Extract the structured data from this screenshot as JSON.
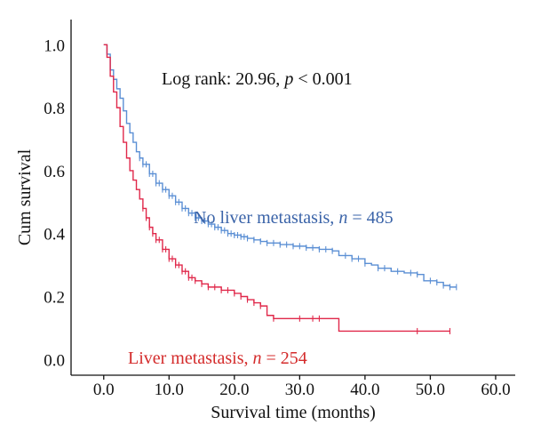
{
  "chart_data": {
    "type": "line",
    "title": "",
    "xlabel": "Survival time (months)",
    "ylabel": "Cum survival",
    "xlim": [
      -5,
      63
    ],
    "ylim": [
      -0.05,
      1.08
    ],
    "x_ticks": [
      "0.0",
      "10.0",
      "20.0",
      "30.0",
      "40.0",
      "50.0",
      "60.0"
    ],
    "x_tick_values": [
      0,
      10,
      20,
      30,
      40,
      50,
      60
    ],
    "y_ticks": [
      "0.0",
      "0.2",
      "0.4",
      "0.6",
      "0.8",
      "1.0"
    ],
    "y_tick_values": [
      0.0,
      0.2,
      0.4,
      0.6,
      0.8,
      1.0
    ],
    "grid": false,
    "annotations": {
      "logrank_prefix": "Log rank: 20.96, ",
      "logrank_p": "p",
      "logrank_suffix": " < 0.001",
      "no_liver_prefix": "No liver metastasis, ",
      "no_liver_n": "n",
      "no_liver_suffix": " = 485",
      "liver_prefix": "Liver metastasis, ",
      "liver_n": "n",
      "liver_suffix": " = 254"
    },
    "series": [
      {
        "name": "No liver metastasis, n = 485",
        "color": "#5b8fd4",
        "points": [
          [
            0,
            1.0
          ],
          [
            0.5,
            0.97
          ],
          [
            1,
            0.92
          ],
          [
            1.5,
            0.89
          ],
          [
            2,
            0.86
          ],
          [
            2.5,
            0.83
          ],
          [
            3,
            0.79
          ],
          [
            3.5,
            0.75
          ],
          [
            4,
            0.72
          ],
          [
            4.5,
            0.69
          ],
          [
            5,
            0.66
          ],
          [
            5.5,
            0.64
          ],
          [
            6,
            0.62
          ],
          [
            7,
            0.59
          ],
          [
            8,
            0.56
          ],
          [
            9,
            0.54
          ],
          [
            10,
            0.52
          ],
          [
            11,
            0.5
          ],
          [
            12,
            0.48
          ],
          [
            13,
            0.465
          ],
          [
            14,
            0.45
          ],
          [
            15,
            0.44
          ],
          [
            16,
            0.43
          ],
          [
            17,
            0.42
          ],
          [
            18,
            0.41
          ],
          [
            19,
            0.4
          ],
          [
            20,
            0.395
          ],
          [
            21,
            0.39
          ],
          [
            22,
            0.385
          ],
          [
            23,
            0.38
          ],
          [
            24,
            0.375
          ],
          [
            25,
            0.37
          ],
          [
            27,
            0.365
          ],
          [
            29,
            0.36
          ],
          [
            31,
            0.355
          ],
          [
            33,
            0.35
          ],
          [
            35,
            0.345
          ],
          [
            36,
            0.33
          ],
          [
            38,
            0.32
          ],
          [
            40,
            0.305
          ],
          [
            41,
            0.3
          ],
          [
            42,
            0.29
          ],
          [
            44,
            0.28
          ],
          [
            46,
            0.275
          ],
          [
            48,
            0.27
          ],
          [
            49,
            0.25
          ],
          [
            51,
            0.245
          ],
          [
            52,
            0.235
          ],
          [
            53,
            0.23
          ],
          [
            54,
            0.23
          ]
        ],
        "censor_x": [
          5.5,
          6,
          6.5,
          7,
          7.5,
          8,
          8.5,
          9,
          9.5,
          10,
          10.5,
          11,
          11.5,
          12,
          12.5,
          13,
          13.5,
          14,
          14.5,
          15,
          15.5,
          16,
          16.5,
          17,
          17.5,
          18,
          18.5,
          19,
          19.5,
          20,
          20.5,
          21,
          21.5,
          22,
          23,
          24,
          25,
          26,
          27,
          28,
          29,
          30,
          31,
          32,
          33,
          34,
          35,
          37,
          38,
          39,
          40,
          42,
          43,
          45,
          47,
          48,
          50,
          51,
          52,
          53,
          54
        ]
      },
      {
        "name": "Liver metastasis, n = 254",
        "color": "#e0284a",
        "points": [
          [
            0,
            1.0
          ],
          [
            0.5,
            0.96
          ],
          [
            1,
            0.9
          ],
          [
            1.5,
            0.85
          ],
          [
            2,
            0.8
          ],
          [
            2.5,
            0.74
          ],
          [
            3,
            0.69
          ],
          [
            3.5,
            0.64
          ],
          [
            4,
            0.6
          ],
          [
            4.5,
            0.57
          ],
          [
            5,
            0.54
          ],
          [
            5.5,
            0.51
          ],
          [
            6,
            0.48
          ],
          [
            6.5,
            0.45
          ],
          [
            7,
            0.42
          ],
          [
            7.5,
            0.4
          ],
          [
            8,
            0.38
          ],
          [
            9,
            0.35
          ],
          [
            10,
            0.32
          ],
          [
            11,
            0.3
          ],
          [
            12,
            0.28
          ],
          [
            13,
            0.26
          ],
          [
            14,
            0.25
          ],
          [
            15,
            0.24
          ],
          [
            16,
            0.23
          ],
          [
            18,
            0.22
          ],
          [
            20,
            0.21
          ],
          [
            21,
            0.2
          ],
          [
            22,
            0.19
          ],
          [
            23,
            0.18
          ],
          [
            24,
            0.17
          ],
          [
            25,
            0.14
          ],
          [
            26,
            0.13
          ],
          [
            27,
            0.13
          ],
          [
            30,
            0.13
          ],
          [
            33,
            0.13
          ],
          [
            35,
            0.13
          ],
          [
            36,
            0.09
          ],
          [
            40,
            0.09
          ],
          [
            45,
            0.09
          ],
          [
            48,
            0.09
          ],
          [
            50,
            0.09
          ],
          [
            53,
            0.09
          ]
        ],
        "censor_x": [
          6,
          6.5,
          7,
          7.5,
          8,
          8.5,
          9,
          9.5,
          10,
          10.5,
          11,
          11.5,
          12,
          12.5,
          13,
          13.5,
          14,
          15,
          16,
          17,
          18,
          19,
          20,
          21,
          22,
          23,
          24,
          26,
          30,
          32,
          33,
          48,
          53
        ]
      }
    ]
  }
}
